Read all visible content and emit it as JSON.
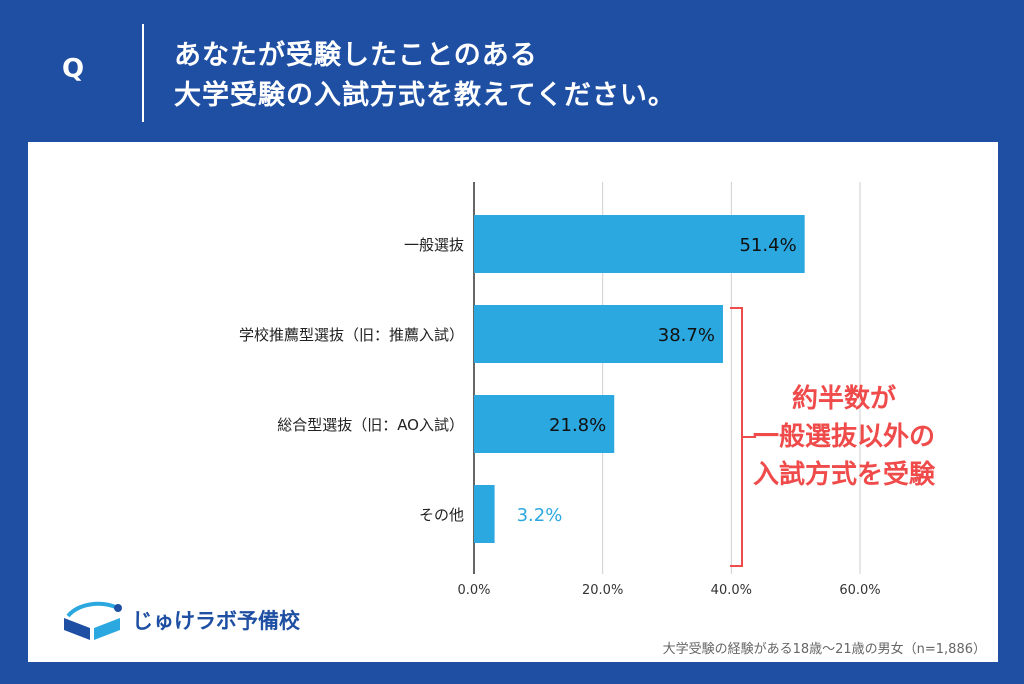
{
  "header": {
    "q_label": "Q",
    "question_line1": "あなたが受験したことのある",
    "question_line2": "大学受験の入試方式を教えてください。"
  },
  "chart_data": {
    "type": "bar",
    "orientation": "horizontal",
    "categories": [
      "一般選抜",
      "学校推薦型選抜（旧：推薦入試）",
      "総合型選抜（旧：AO入試）",
      "その他"
    ],
    "values": [
      51.4,
      38.7,
      21.8,
      3.2
    ],
    "value_labels": [
      "51.4%",
      "38.7%",
      "21.8%",
      "3.2%"
    ],
    "x_ticks": [
      "0.0%",
      "20.0%",
      "40.0%",
      "60.0%"
    ],
    "xlim": [
      0,
      60
    ],
    "grid": true,
    "bar_color": "#2ca8e0",
    "annotation": {
      "lines": [
        "約半数が",
        "一般選抜以外の",
        "入試方式を受験"
      ],
      "color": "#ef4b4b"
    }
  },
  "footer": {
    "logo_text": "じゅけラボ予備校",
    "note": "大学受験の経験がある18歳～21歳の男女（n=1,886）"
  }
}
